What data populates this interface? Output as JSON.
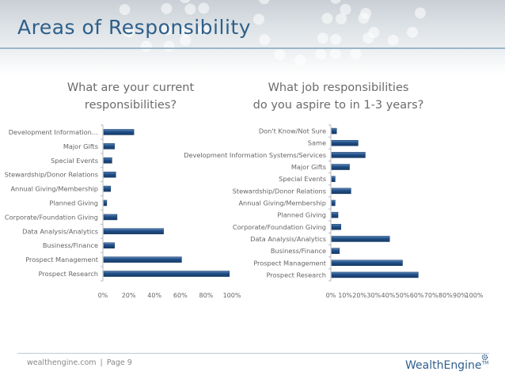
{
  "slide": {
    "title": "Areas of Responsibility",
    "footer": {
      "site": "wealthengine.com",
      "separator": "|",
      "page": "Page 9"
    },
    "logo": {
      "text": "WealthEngine",
      "trademark": "TM"
    }
  },
  "colors": {
    "title": "#2e5f8a",
    "bar": "#1f4e86",
    "bar_highlight": "#5b86b8",
    "axis": "#b9b9b9"
  },
  "chart_data": [
    {
      "type": "bar",
      "orientation": "horizontal",
      "title_lines": [
        "What are your current",
        "responsibilities?"
      ],
      "categories": [
        "Prospect Research",
        "Prospect Management",
        "Business/Finance",
        "Data Analysis/Analytics",
        "Corporate/Foundation Giving",
        "Planned Giving",
        "Annual Giving/Membership",
        "Stewardship/Donor Relations",
        "Special Events",
        "Major Gifts",
        "Development Information…"
      ],
      "values": [
        0.98,
        0.61,
        0.09,
        0.47,
        0.11,
        0.03,
        0.06,
        0.1,
        0.07,
        0.09,
        0.24
      ],
      "xlim": [
        0,
        1
      ],
      "xticks": [
        "0%",
        "20%",
        "40%",
        "60%",
        "80%",
        "100%"
      ],
      "xlabel": "",
      "ylabel": ""
    },
    {
      "type": "bar",
      "orientation": "horizontal",
      "title_lines": [
        "What job responsibilities",
        "do you aspire to in 1-3 years?"
      ],
      "categories": [
        "Prospect Research",
        "Prospect Management",
        "Business/Finance",
        "Data Analysis/Analytics",
        "Corporate/Foundation Giving",
        "Planned Giving",
        "Annual Giving/Membership",
        "Stewardship/Donor Relations",
        "Special Events",
        "Major Gifts",
        "Development Information Systems/Services",
        "Same",
        "Don't Know/Not Sure"
      ],
      "values": [
        0.61,
        0.5,
        0.06,
        0.41,
        0.07,
        0.05,
        0.03,
        0.14,
        0.03,
        0.13,
        0.24,
        0.19,
        0.04
      ],
      "xlim": [
        0,
        1
      ],
      "xticks": [
        "0%",
        "10%",
        "20%",
        "30%",
        "40%",
        "50%",
        "60%",
        "70%",
        "80%",
        "90%",
        "100%"
      ],
      "xlabel": "",
      "ylabel": ""
    }
  ]
}
